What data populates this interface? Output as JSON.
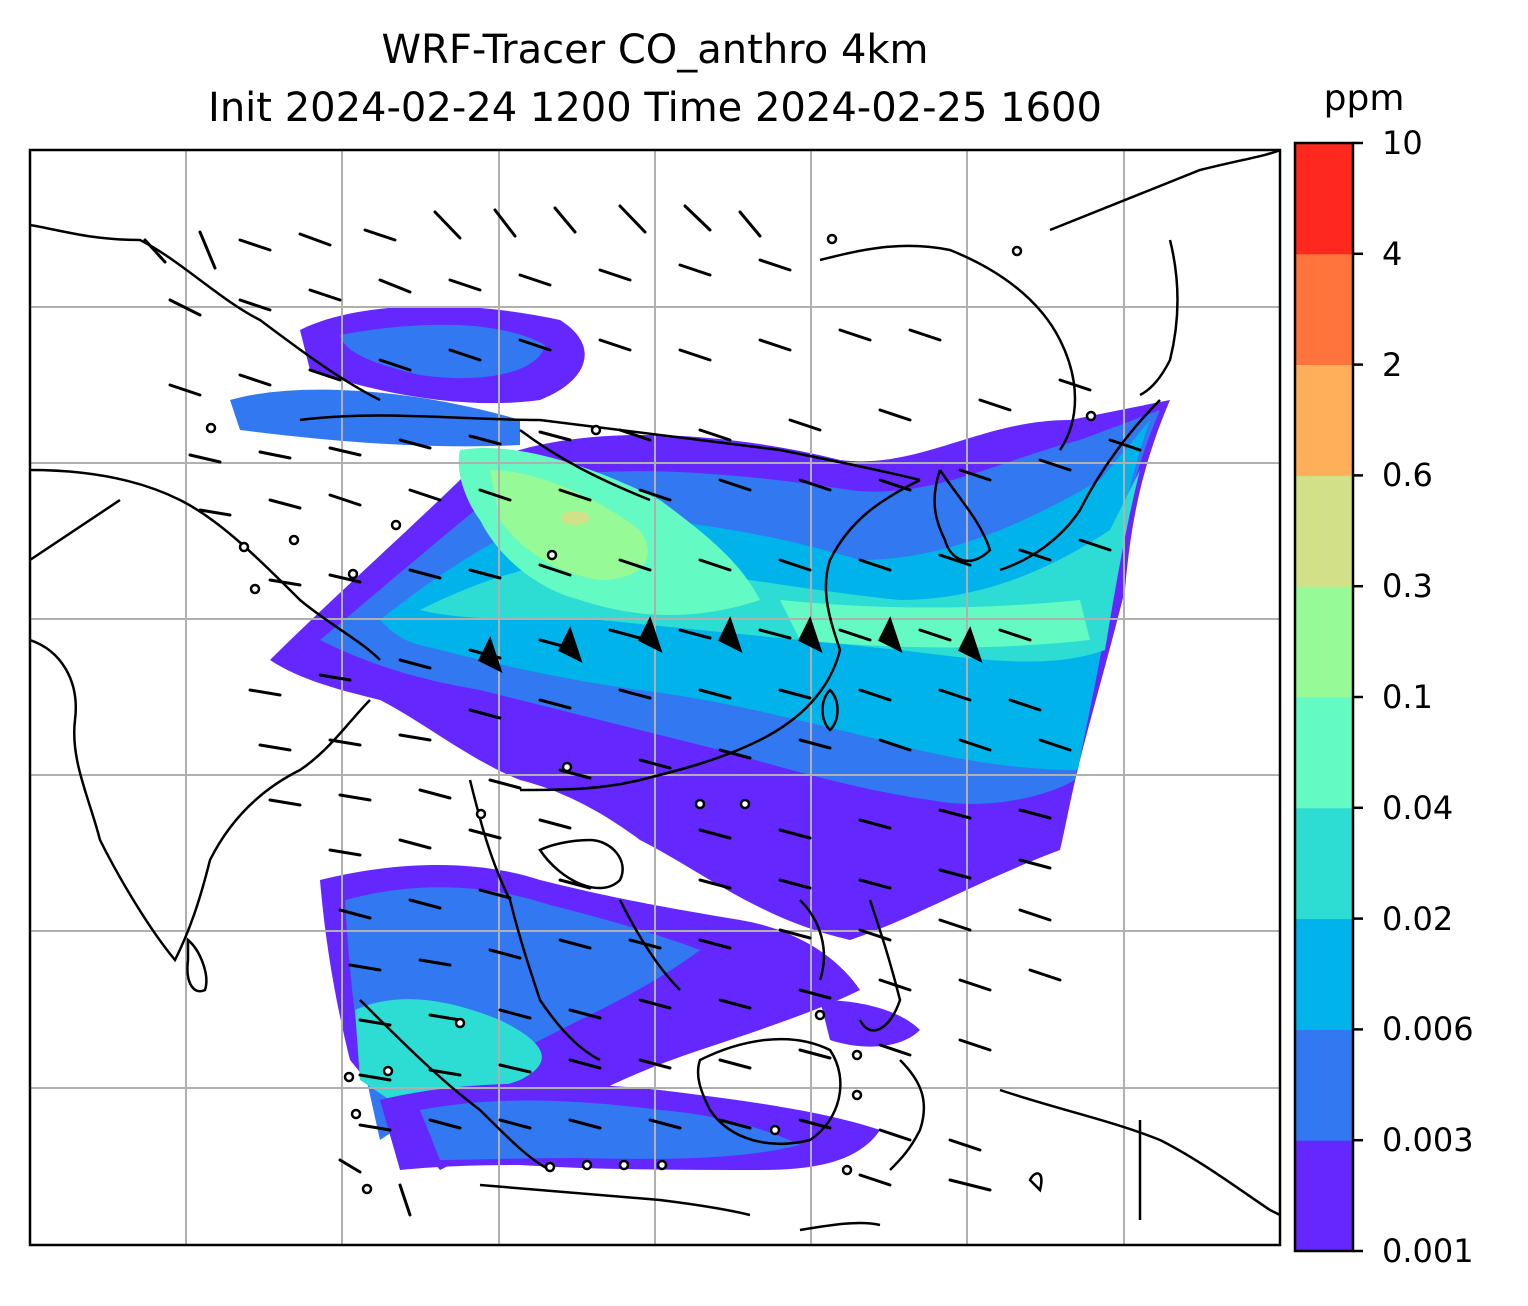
{
  "title": {
    "line1": "WRF-Tracer CO_anthro 4km",
    "line2": "Init 2024-02-24 1200 Time 2024-02-25 1600"
  },
  "colorbar": {
    "unit": "ppm",
    "levels": [
      "0.001",
      "0.003",
      "0.006",
      "0.02",
      "0.04",
      "0.1",
      "0.3",
      "0.6",
      "2",
      "4",
      "10"
    ],
    "colors": [
      "#6428ff",
      "#3278f0",
      "#00b4eb",
      "#2ddcd2",
      "#64fac3",
      "#96fa96",
      "#d2e188",
      "#ffaf5a",
      "#ff733c",
      "#ff281e"
    ]
  },
  "map": {
    "gridlines": true,
    "grid_color": "#b0b0b0",
    "coastline_color": "#000000",
    "wind_barbs": true,
    "calm_circles": true
  }
}
